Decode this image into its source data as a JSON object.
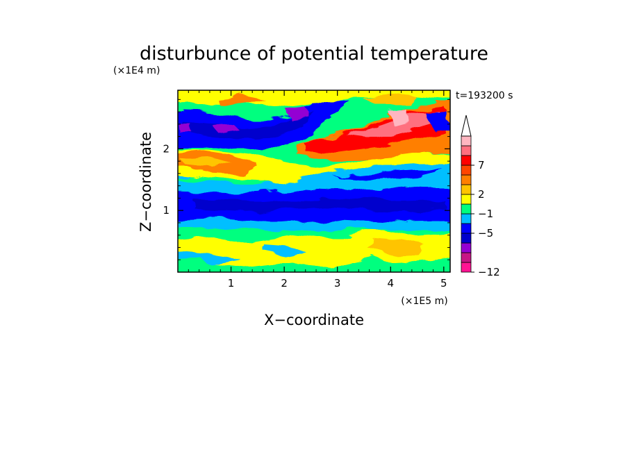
{
  "chart_data": {
    "type": "heatmap",
    "title": "disturbunce of potential temperature",
    "xlabel": "X−coordinate",
    "ylabel": "Z−coordinate",
    "x_unit": "(×1E5 m)",
    "y_unit": "(×1E4 m)",
    "time_label": "t=193200 s",
    "xlim": [
      0,
      5.12
    ],
    "ylim": [
      0,
      2.95
    ],
    "x_ticks": [
      {
        "v": 1,
        "label": "1"
      },
      {
        "v": 2,
        "label": "2"
      },
      {
        "v": 3,
        "label": "3"
      },
      {
        "v": 4,
        "label": "4"
      },
      {
        "v": 5,
        "label": "5"
      }
    ],
    "y_ticks": [
      {
        "v": 1,
        "label": "1"
      },
      {
        "v": 2,
        "label": "2"
      }
    ],
    "grid": false,
    "colorbar": {
      "placement": "right",
      "levels": [
        {
          "color": "#ff1493"
        },
        {
          "color": "#c71585"
        },
        {
          "color": "#9400d3"
        },
        {
          "color": "#0000cd"
        },
        {
          "color": "#0000ff"
        },
        {
          "color": "#00bfff"
        },
        {
          "color": "#00ff7f"
        },
        {
          "color": "#ffff00"
        },
        {
          "color": "#ffc400"
        },
        {
          "color": "#ff7f00"
        },
        {
          "color": "#ff4500"
        },
        {
          "color": "#ff0000"
        },
        {
          "color": "#ff6f7f"
        },
        {
          "color": "#ffb6c1"
        }
      ],
      "labels": [
        {
          "index": 0,
          "text": "−12"
        },
        {
          "index": 4,
          "text": "−5"
        },
        {
          "index": 6,
          "text": "−1"
        },
        {
          "index": 8,
          "text": "2"
        },
        {
          "index": 11,
          "text": "7"
        }
      ],
      "extend_top": true
    },
    "field": [
      {
        "z_range": [
          0.0,
          0.15
        ],
        "level": 6,
        "note": "green"
      },
      {
        "z_range": [
          0.15,
          0.55
        ],
        "level": 7,
        "note": "yellow/green patches"
      },
      {
        "z_range": [
          0.55,
          0.85
        ],
        "level": 6,
        "note": "green"
      },
      {
        "z_range": [
          0.85,
          1.3
        ],
        "level": 3,
        "note": "blue"
      },
      {
        "z_range": [
          1.3,
          1.55
        ],
        "level": 5,
        "note": "cyan"
      },
      {
        "z_range": [
          1.55,
          1.9
        ],
        "level": 8,
        "note": "orange/yellow"
      },
      {
        "z_range": [
          1.9,
          2.45
        ],
        "level": 11,
        "note": "red band rising to the right"
      },
      {
        "z_range": [
          2.45,
          2.95
        ],
        "level": 4,
        "note": "blue/purple at left, red at right"
      }
    ]
  }
}
